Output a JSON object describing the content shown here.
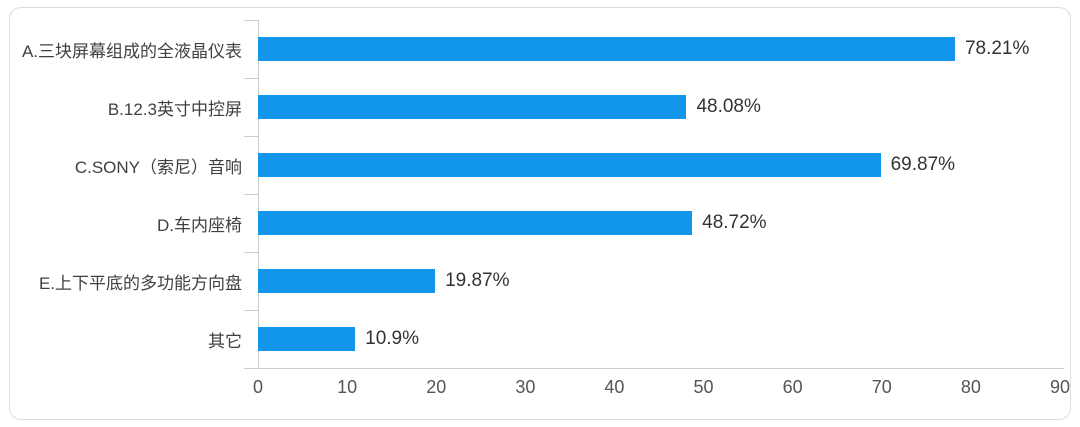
{
  "chart_data": {
    "type": "bar",
    "orientation": "horizontal",
    "title": "",
    "xlabel": "",
    "ylabel": "",
    "categories": [
      "A.三块屏幕组成的全液晶仪表",
      "B.12.3英寸中控屏",
      "C.SONY（索尼）音响",
      "D.车内座椅",
      "E.上下平底的多功能方向盘",
      "其它"
    ],
    "values": [
      78.21,
      48.08,
      69.87,
      48.72,
      19.87,
      10.9
    ],
    "value_labels": [
      "78.21%",
      "48.08%",
      "69.87%",
      "48.72%",
      "19.87%",
      "10.9%"
    ],
    "xlim": [
      0,
      90
    ],
    "x_ticks": [
      "0",
      "10",
      "20",
      "30",
      "40",
      "50",
      "60",
      "70",
      "80",
      "90"
    ],
    "grid": false,
    "legend": "none",
    "colors": {
      "bar": "#1196ec",
      "axis": "#cccccc",
      "category_label": "#404040",
      "value_label": "#333333",
      "tick_label": "#555555",
      "card_border": "#dddddd",
      "background": "#ffffff"
    }
  }
}
